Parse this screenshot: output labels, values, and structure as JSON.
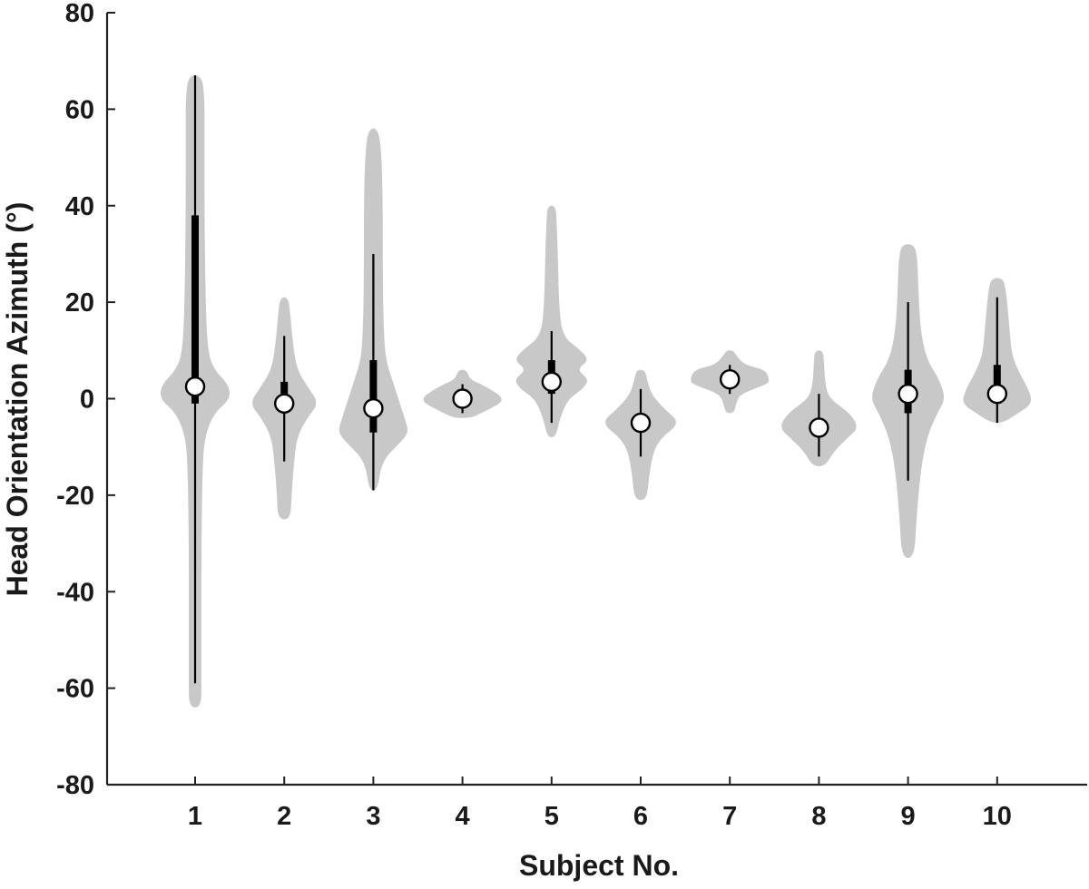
{
  "chart_data": {
    "type": "violin",
    "title": "",
    "xlabel": "Subject No.",
    "ylabel": "Head Orientation Azimuth (°)",
    "ylim": [
      -80,
      80
    ],
    "yticks": [
      "-80",
      "-60",
      "-40",
      "-20",
      "0",
      "20",
      "40",
      "60",
      "80"
    ],
    "ytick_values": [
      -80,
      -60,
      -40,
      -20,
      0,
      20,
      40,
      60,
      80
    ],
    "categories": [
      "1",
      "2",
      "3",
      "4",
      "5",
      "6",
      "7",
      "8",
      "9",
      "10"
    ],
    "grid": false,
    "colors": {
      "violin": "#c8c8c8",
      "box": "#000000",
      "median": "#ffffff"
    },
    "series": [
      {
        "subject": "1",
        "median": 2.5,
        "q1": -1,
        "q3": 38,
        "whisker_low": -59,
        "whisker_high": 67,
        "min": -64,
        "max": 67,
        "density": [
          [
            -64,
            6
          ],
          [
            -58,
            6
          ],
          [
            -45,
            6
          ],
          [
            -30,
            6
          ],
          [
            -15,
            7
          ],
          [
            -8,
            9
          ],
          [
            -3,
            18
          ],
          [
            0,
            34
          ],
          [
            3,
            32
          ],
          [
            6,
            18
          ],
          [
            10,
            12
          ],
          [
            20,
            10
          ],
          [
            40,
            9
          ],
          [
            55,
            9
          ],
          [
            63,
            9
          ],
          [
            67,
            6
          ]
        ]
      },
      {
        "subject": "2",
        "median": -1,
        "q1": -2,
        "q3": 3.5,
        "whisker_low": -13,
        "whisker_high": 13,
        "min": -25,
        "max": 21,
        "density": [
          [
            -25,
            6
          ],
          [
            -20,
            7
          ],
          [
            -14,
            9
          ],
          [
            -8,
            12
          ],
          [
            -4,
            22
          ],
          [
            -1,
            33
          ],
          [
            2,
            24
          ],
          [
            6,
            12
          ],
          [
            12,
            8
          ],
          [
            17,
            6
          ],
          [
            21,
            4
          ]
        ]
      },
      {
        "subject": "3",
        "median": -2,
        "q1": -7,
        "q3": 8,
        "whisker_low": -19,
        "whisker_high": 30,
        "min": -19,
        "max": 56,
        "density": [
          [
            -19,
            4
          ],
          [
            -13,
            8
          ],
          [
            -9,
            26
          ],
          [
            -7,
            34
          ],
          [
            -4,
            30
          ],
          [
            0,
            24
          ],
          [
            4,
            18
          ],
          [
            8,
            12
          ],
          [
            14,
            10
          ],
          [
            25,
            9
          ],
          [
            40,
            9
          ],
          [
            50,
            8
          ],
          [
            56,
            5
          ]
        ]
      },
      {
        "subject": "4",
        "median": 0,
        "q1": -1.5,
        "q3": 1.5,
        "whisker_low": -3,
        "whisker_high": 3,
        "min": -4,
        "max": 6,
        "density": [
          [
            -4,
            8
          ],
          [
            -3,
            18
          ],
          [
            -1,
            36
          ],
          [
            0,
            38
          ],
          [
            1,
            34
          ],
          [
            3,
            18
          ],
          [
            4,
            7
          ],
          [
            6,
            4
          ]
        ]
      },
      {
        "subject": "5",
        "median": 3.5,
        "q1": 1,
        "q3": 8,
        "whisker_low": -5,
        "whisker_high": 14,
        "min": -8,
        "max": 40,
        "density": [
          [
            -8,
            4
          ],
          [
            -4,
            8
          ],
          [
            0,
            16
          ],
          [
            2,
            30
          ],
          [
            4,
            36
          ],
          [
            6,
            24
          ],
          [
            8,
            36
          ],
          [
            10,
            28
          ],
          [
            13,
            10
          ],
          [
            20,
            7
          ],
          [
            30,
            6
          ],
          [
            36,
            5
          ],
          [
            40,
            4
          ]
        ]
      },
      {
        "subject": "6",
        "median": -5,
        "q1": -6.5,
        "q3": -3,
        "whisker_low": -12,
        "whisker_high": 2,
        "min": -21,
        "max": 6,
        "density": [
          [
            -21,
            6
          ],
          [
            -16,
            8
          ],
          [
            -11,
            12
          ],
          [
            -8,
            20
          ],
          [
            -5,
            38
          ],
          [
            -2,
            22
          ],
          [
            1,
            10
          ],
          [
            4,
            6
          ],
          [
            6,
            4
          ]
        ]
      },
      {
        "subject": "7",
        "median": 4,
        "q1": 3,
        "q3": 5,
        "whisker_low": 1,
        "whisker_high": 7,
        "min": -3,
        "max": 10,
        "density": [
          [
            -3,
            4
          ],
          [
            -1,
            6
          ],
          [
            1,
            10
          ],
          [
            3,
            36
          ],
          [
            4,
            38
          ],
          [
            6,
            34
          ],
          [
            7,
            14
          ],
          [
            9,
            6
          ],
          [
            10,
            3
          ]
        ]
      },
      {
        "subject": "8",
        "median": -6,
        "q1": -7.5,
        "q3": -4,
        "whisker_low": -12,
        "whisker_high": 1,
        "min": -14,
        "max": 10,
        "density": [
          [
            -14,
            6
          ],
          [
            -11,
            14
          ],
          [
            -8,
            28
          ],
          [
            -6,
            38
          ],
          [
            -3,
            30
          ],
          [
            0,
            10
          ],
          [
            3,
            6
          ],
          [
            7,
            5
          ],
          [
            10,
            4
          ]
        ]
      },
      {
        "subject": "9",
        "median": 1,
        "q1": -3,
        "q3": 6,
        "whisker_low": -17,
        "whisker_high": 20,
        "min": -33,
        "max": 32,
        "density": [
          [
            -33,
            6
          ],
          [
            -25,
            8
          ],
          [
            -15,
            12
          ],
          [
            -8,
            18
          ],
          [
            -3,
            28
          ],
          [
            0,
            36
          ],
          [
            4,
            30
          ],
          [
            8,
            18
          ],
          [
            14,
            12
          ],
          [
            22,
            10
          ],
          [
            29,
            9
          ],
          [
            32,
            6
          ]
        ]
      },
      {
        "subject": "10",
        "median": 1,
        "q1": -1,
        "q3": 7,
        "whisker_low": -5,
        "whisker_high": 21,
        "min": -5,
        "max": 25,
        "density": [
          [
            -5,
            6
          ],
          [
            -3,
            20
          ],
          [
            -1,
            34
          ],
          [
            2,
            30
          ],
          [
            5,
            22
          ],
          [
            9,
            14
          ],
          [
            14,
            12
          ],
          [
            19,
            10
          ],
          [
            23,
            8
          ],
          [
            25,
            5
          ]
        ]
      }
    ]
  }
}
